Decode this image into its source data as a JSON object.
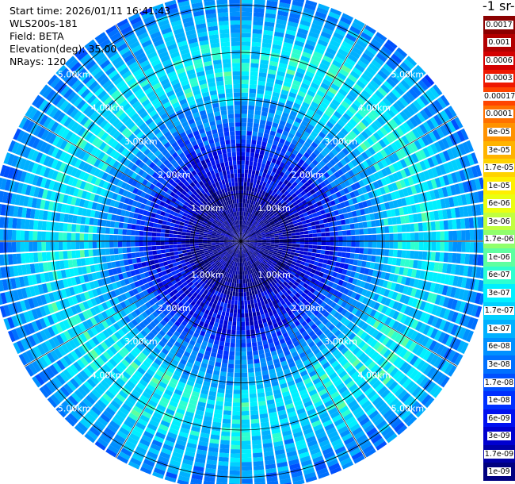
{
  "header": {
    "start_time": "Start time: 2026/01/11 16:41:43",
    "instrument": "WLS200s-181",
    "field": "Field: BETA",
    "elevation": "Elevation(deg): 35.00",
    "nrays": "NRays: 120"
  },
  "colorbar": {
    "title": "-1 sr-",
    "labels": [
      "0.0017",
      "0.001",
      "0.0006",
      "0.0003",
      "0.00017",
      "0.0001",
      "6e-05",
      "3e-05",
      "1.7e-05",
      "1e-05",
      "6e-06",
      "3e-06",
      "1.7e-06",
      "1e-06",
      "6e-07",
      "3e-07",
      "1.7e-07",
      "1e-07",
      "6e-08",
      "3e-08",
      "1.7e-08",
      "1e-08",
      "6e-09",
      "3e-09",
      "1.7e-09",
      "1e-09"
    ],
    "colors": [
      "#8b0000",
      "#b20000",
      "#d40000",
      "#ee1800",
      "#ff4400",
      "#ff7000",
      "#ff9200",
      "#ffb300",
      "#ffd300",
      "#ffef00",
      "#eaff10",
      "#c0ff40",
      "#90ff6c",
      "#5effa0",
      "#2dffd0",
      "#00f0ff",
      "#00d0ff",
      "#00b0ff",
      "#0090ff",
      "#0070ff",
      "#0050ff",
      "#0030ff",
      "#0010f0",
      "#0000d0",
      "#0000a8",
      "#000080"
    ]
  },
  "chart_data": {
    "type": "heatmap",
    "projection": "polar PPI (plan position indicator)",
    "field": "BETA",
    "elevation_deg": 35.0,
    "n_rays": 120,
    "range_rings_km": [
      1,
      2,
      3,
      4,
      5
    ],
    "ring_labels": [
      "1.00km",
      "2.00km",
      "3.00km",
      "4.00km",
      "5.00km"
    ],
    "max_range_km": 5.3,
    "color_scale": "log",
    "value_range": [
      1e-09,
      0.0017
    ],
    "typical_values": [
      {
        "range_km": [
          0,
          2.0
        ],
        "beta": "1e-09 to 3e-08"
      },
      {
        "range_km": [
          2.0,
          3.2
        ],
        "beta": "1e-08 to 1e-07"
      },
      {
        "range_km": [
          3.2,
          4.3
        ],
        "beta": "1.7e-07 to 3e-07"
      },
      {
        "range_km": [
          4.3,
          5.3
        ],
        "beta": "3e-08 to 3e-07"
      }
    ],
    "grid": true
  }
}
